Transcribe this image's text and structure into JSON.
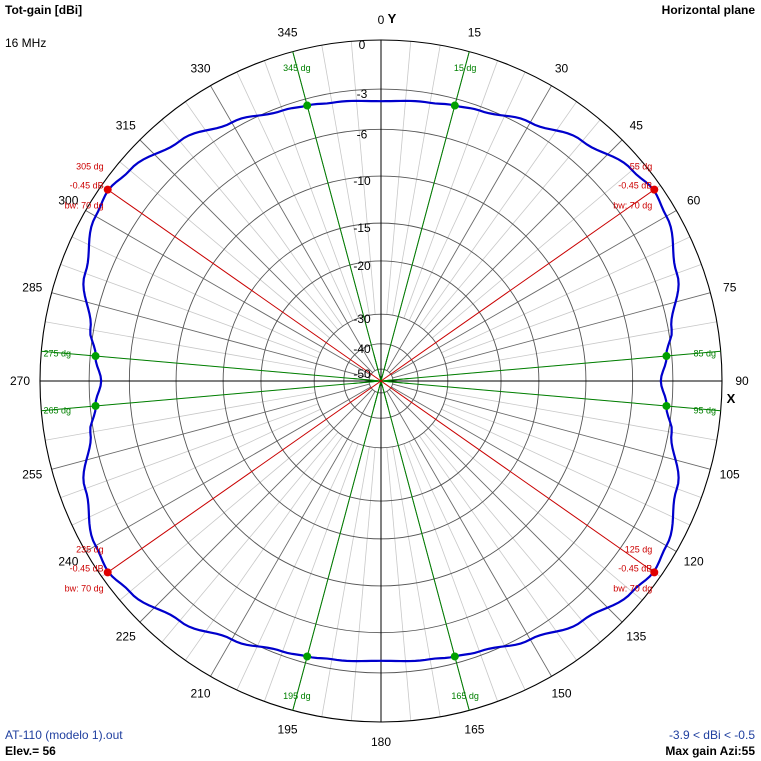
{
  "header": {
    "title": "Tot-gain [dBi]",
    "plane": "Horizontal plane",
    "frequency": "16 MHz"
  },
  "footer": {
    "file": "AT-110 (modelo 1).out",
    "elevation": "Elev.= 56",
    "gain_range": "-3.9 < dBi < -0.5",
    "max_gain": "Max gain Azi:55"
  },
  "axes": {
    "y": "Y",
    "x": "X"
  },
  "colors": {
    "pattern": "#0000cc",
    "grid": "#888888",
    "green": "#008000",
    "red": "#cc0000"
  },
  "chart_data": {
    "type": "polar",
    "angle_unit": "degrees (azimuth, clockwise from Y)",
    "angle_ticks": [
      0,
      15,
      30,
      45,
      60,
      75,
      90,
      105,
      120,
      135,
      150,
      165,
      180,
      195,
      210,
      225,
      240,
      255,
      270,
      285,
      300,
      315,
      330,
      345
    ],
    "angle_tick_labels": [
      "0",
      "15",
      "30",
      "45",
      "60",
      "75",
      "90",
      "105",
      "120",
      "135",
      "150",
      "165",
      "180",
      "195",
      "210",
      "225",
      "240",
      "255",
      "270",
      "285",
      "300",
      "315",
      "330",
      "345"
    ],
    "radial_db_rings": [
      0,
      -3,
      -6,
      -10,
      -15,
      -20,
      -30,
      -40,
      -50
    ],
    "radial_db_labels": [
      "0",
      "-3",
      "-6",
      "-10",
      "-15",
      "-20",
      "-30",
      "-40",
      "-50"
    ],
    "gain_range": [
      -3.9,
      -0.5
    ],
    "pattern_series": {
      "name": "Tot-gain",
      "azimuth": [
        0,
        10,
        15,
        20,
        30,
        40,
        50,
        55,
        60,
        70,
        80,
        85,
        90,
        95,
        100,
        110,
        120,
        125,
        130,
        140,
        150,
        160,
        165,
        170,
        180,
        190,
        195,
        200,
        210,
        220,
        230,
        235,
        240,
        250,
        260,
        265,
        270,
        275,
        280,
        290,
        300,
        305,
        310,
        320,
        330,
        340,
        345,
        350,
        360
      ],
      "gain_dbi": [
        -3.9,
        -3.7,
        -3.5,
        -3.3,
        -2.6,
        -1.7,
        -0.8,
        -0.5,
        -0.7,
        -1.6,
        -2.8,
        -3.4,
        -3.9,
        -3.4,
        -2.8,
        -1.6,
        -0.7,
        -0.5,
        -0.8,
        -1.7,
        -2.6,
        -3.3,
        -3.5,
        -3.7,
        -3.9,
        -3.7,
        -3.5,
        -3.3,
        -2.6,
        -1.7,
        -0.8,
        -0.5,
        -0.7,
        -1.6,
        -2.8,
        -3.4,
        -3.9,
        -3.4,
        -2.8,
        -1.6,
        -0.7,
        -0.5,
        -0.8,
        -1.7,
        -2.6,
        -3.3,
        -3.5,
        -3.7,
        -3.9
      ]
    },
    "green_markers": [
      {
        "azimuth": 15,
        "label": "15 dg"
      },
      {
        "azimuth": 85,
        "label": "85 dg"
      },
      {
        "azimuth": 95,
        "label": "95 dg"
      },
      {
        "azimuth": 165,
        "label": "165 dg"
      },
      {
        "azimuth": 195,
        "label": "195 dg"
      },
      {
        "azimuth": 265,
        "label": "265 dg"
      },
      {
        "azimuth": 275,
        "label": "275 dg"
      },
      {
        "azimuth": 345,
        "label": "345 dg"
      }
    ],
    "red_markers": [
      {
        "azimuth": 55,
        "angle_label": "55 dg",
        "gain_label": "-0.45 dB",
        "bw_label": "bw: 70 dg"
      },
      {
        "azimuth": 125,
        "angle_label": "125 dg",
        "gain_label": "-0.45 dB",
        "bw_label": "bw: 70 dg"
      },
      {
        "azimuth": 235,
        "angle_label": "235 dg",
        "gain_label": "-0.45 dB",
        "bw_label": "bw: 70 dg"
      },
      {
        "azimuth": 305,
        "angle_label": "305 dg",
        "gain_label": "-0.45 dB",
        "bw_label": "bw: 70 dg"
      }
    ]
  }
}
